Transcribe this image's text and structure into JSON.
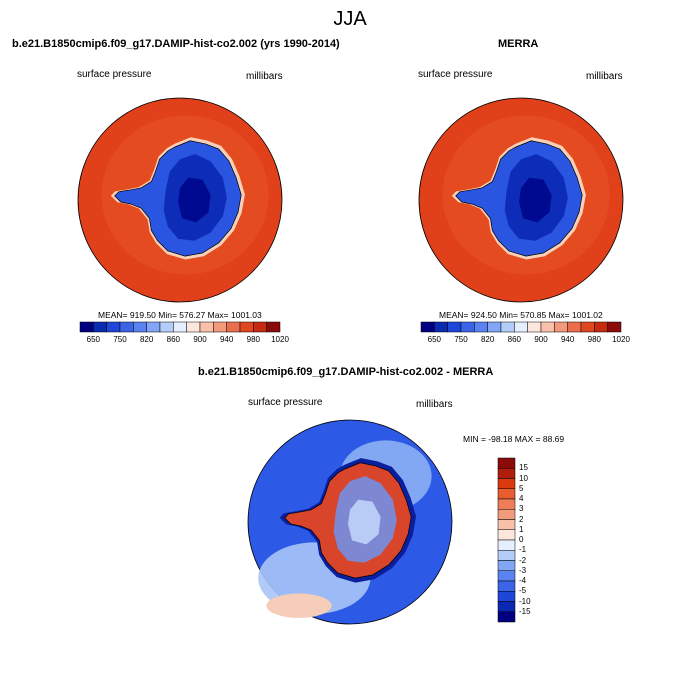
{
  "figure": {
    "title": "JJA"
  },
  "panels": [
    {
      "title": "b.e21.B1850cmip6.f09_g17.DAMIP-hist-co2.002 (yrs 1990-2014)",
      "left_label": "surface pressure",
      "right_label": "millibars",
      "stats": "MEAN= 919.50  Min= 576.27  Max= 1001.03"
    },
    {
      "title": "MERRA",
      "left_label": "surface pressure",
      "right_label": "millibars",
      "stats": "MEAN= 924.50  Min= 570.85  Max= 1001.02"
    },
    {
      "title": "b.e21.B1850cmip6.f09_g17.DAMIP-hist-co2.002 - MERRA",
      "left_label": "surface pressure",
      "right_label": "millibars",
      "stats": "MIN = -98.18 MAX =  88.69"
    }
  ],
  "chart_data": {
    "type": "heatmap",
    "description_region": "Antarctica, polar stereographic",
    "abs_colorbar": {
      "colors": [
        "#000080",
        "#0a2bb0",
        "#1e46d8",
        "#3c64e6",
        "#5a82f0",
        "#82a5f5",
        "#b4cdf8",
        "#e6efff",
        "#fde7dc",
        "#f9c1aa",
        "#f39a7a",
        "#ea6e4c",
        "#e0471f",
        "#c62a10",
        "#8b0a0a"
      ],
      "tick_labels": [
        "650",
        "750",
        "820",
        "860",
        "900",
        "940",
        "980",
        "1020"
      ]
    },
    "diff_colorbar": {
      "colors": [
        "#000080",
        "#0a28b4",
        "#1e46d8",
        "#3c64e6",
        "#5a82f0",
        "#82a5f5",
        "#b4cdf8",
        "#e6efff",
        "#fde7dc",
        "#f9c1aa",
        "#f39a7a",
        "#ee7e58",
        "#e85d30",
        "#d93a0e",
        "#b01d0c",
        "#8b0a0a"
      ],
      "tick_labels": [
        "15",
        "10",
        "5",
        "4",
        "3",
        "2",
        "1",
        "0",
        "-1",
        "-2",
        "-3",
        "-4",
        "-5",
        "-10",
        "-15"
      ]
    }
  }
}
